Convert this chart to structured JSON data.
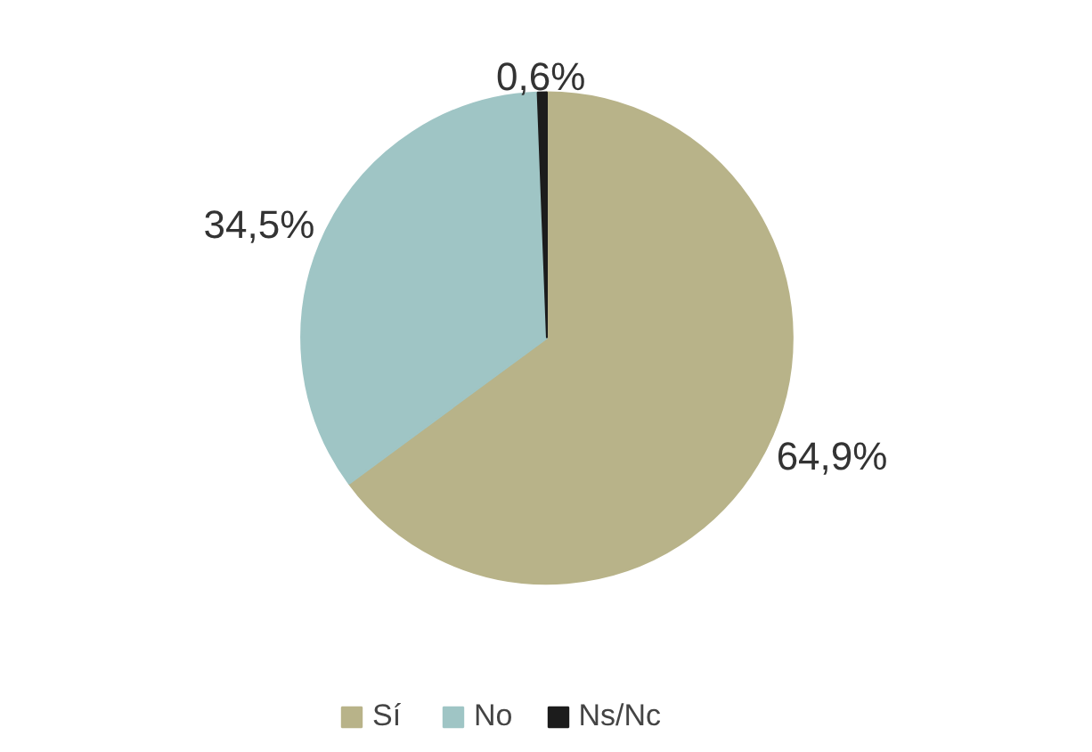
{
  "chart_data": {
    "type": "pie",
    "categories": [
      "Sí",
      "No",
      "Ns/Nc"
    ],
    "values": [
      64.9,
      34.5,
      0.6
    ],
    "colors": [
      "#b8b389",
      "#9fc5c5",
      "#1c1c1c"
    ],
    "value_labels": [
      "64,9%",
      "34,5%",
      "0,6%"
    ],
    "legend": "bottom"
  }
}
